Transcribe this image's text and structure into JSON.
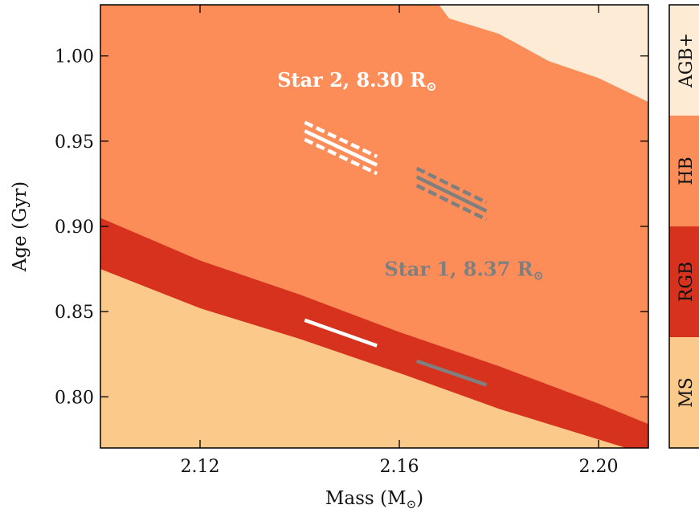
{
  "chart_data": {
    "type": "area",
    "xlabel": "Mass (M",
    "xlabel_sub": "⊙",
    "xlabel_end": ")",
    "ylabel": "Age (Gyr)",
    "xlim": [
      2.1,
      2.21
    ],
    "ylim": [
      0.77,
      1.03
    ],
    "xticks": [
      {
        "v": 2.12,
        "label": "2.12"
      },
      {
        "v": 2.16,
        "label": "2.16"
      },
      {
        "v": 2.2,
        "label": "2.20"
      }
    ],
    "yticks": [
      {
        "v": 0.8,
        "label": "0.80"
      },
      {
        "v": 0.85,
        "label": "0.85"
      },
      {
        "v": 0.9,
        "label": "0.90"
      },
      {
        "v": 0.95,
        "label": "0.95"
      },
      {
        "v": 1.0,
        "label": "1.00"
      }
    ],
    "colors": {
      "MS": "#fbc98a",
      "RGB": "#d7321e",
      "HB": "#fc8d59",
      "AGB+": "#fdebd5",
      "star1": "#7f7f7f",
      "star2": "#ffffff"
    },
    "boundaries": {
      "ms_rgb": [
        [
          2.1,
          0.875
        ],
        [
          2.12,
          0.852
        ],
        [
          2.14,
          0.834
        ],
        [
          2.16,
          0.814
        ],
        [
          2.18,
          0.793
        ],
        [
          2.2,
          0.775
        ],
        [
          2.21,
          0.766
        ]
      ],
      "rgb_hb": [
        [
          2.1,
          0.905
        ],
        [
          2.12,
          0.88
        ],
        [
          2.14,
          0.86
        ],
        [
          2.16,
          0.838
        ],
        [
          2.18,
          0.818
        ],
        [
          2.2,
          0.796
        ],
        [
          2.21,
          0.784
        ]
      ],
      "hb_agb": [
        [
          2.1667,
          1.035
        ],
        [
          2.17,
          1.022
        ],
        [
          2.18,
          1.013
        ],
        [
          2.19,
          0.997
        ],
        [
          2.2,
          0.987
        ],
        [
          2.21,
          0.973
        ]
      ]
    },
    "colorbar": [
      {
        "label": "MS",
        "color": "#fbc98a"
      },
      {
        "label": "RGB",
        "color": "#d7321e"
      },
      {
        "label": "HB",
        "color": "#fc8d59"
      },
      {
        "label": "AGB+",
        "color": "#fdebd5"
      }
    ],
    "stars": [
      {
        "name": "Star 1",
        "radius_label": "Star 1,  8.37 R",
        "radius_sub": "⊙",
        "color": "#7f7f7f",
        "text_pos": [
          2.157,
          0.871
        ],
        "hb_line": [
          [
            2.1635,
            0.929
          ],
          [
            2.1775,
            0.909
          ]
        ],
        "hb_upper": [
          [
            2.1635,
            0.934
          ],
          [
            2.1775,
            0.914
          ]
        ],
        "hb_lower": [
          [
            2.1635,
            0.924
          ],
          [
            2.1775,
            0.904
          ]
        ],
        "rgb_line": [
          [
            2.1635,
            0.821
          ],
          [
            2.1775,
            0.807
          ]
        ]
      },
      {
        "name": "Star 2",
        "radius_label": "Star 2,  8.30 R",
        "radius_sub": "⊙",
        "color": "#ffffff",
        "text_pos": [
          2.1355,
          0.982
        ],
        "hb_line": [
          [
            2.141,
            0.956
          ],
          [
            2.1555,
            0.936
          ]
        ],
        "hb_upper": [
          [
            2.141,
            0.961
          ],
          [
            2.1555,
            0.941
          ]
        ],
        "hb_lower": [
          [
            2.141,
            0.951
          ],
          [
            2.1555,
            0.931
          ]
        ],
        "rgb_line": [
          [
            2.141,
            0.845
          ],
          [
            2.1555,
            0.83
          ]
        ]
      }
    ]
  }
}
